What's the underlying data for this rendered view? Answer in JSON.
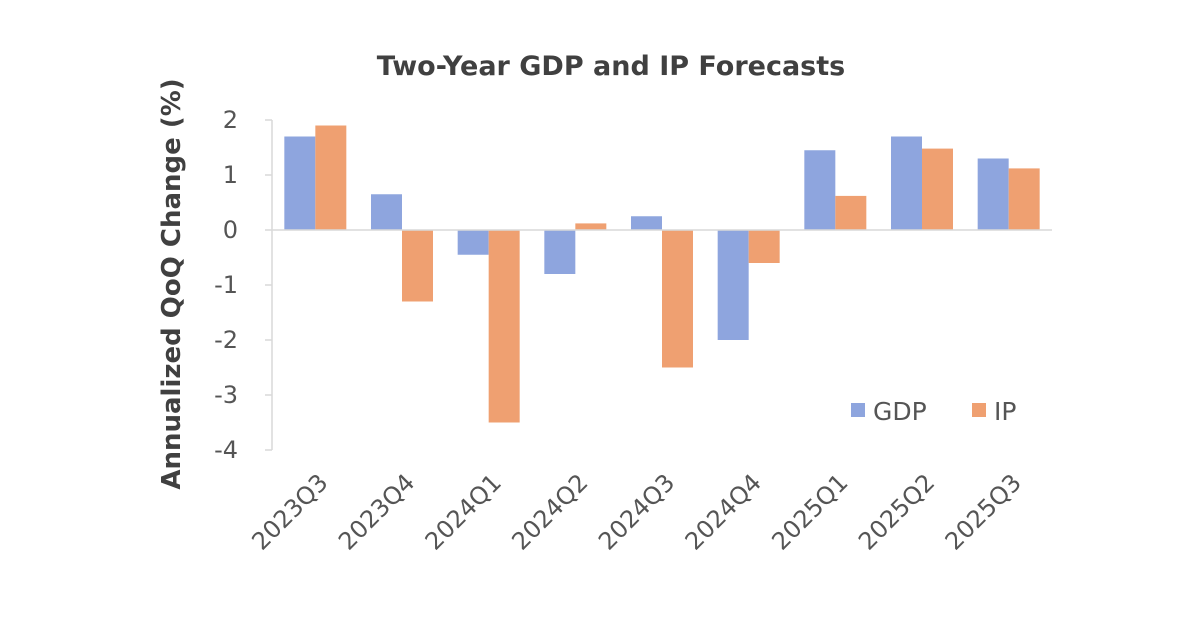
{
  "chart_data": {
    "type": "bar",
    "title": "Two-Year GDP and IP Forecasts",
    "xlabel": "",
    "ylabel": "Annualized QoQ Change (%)",
    "categories": [
      "2023Q3",
      "2023Q4",
      "2024Q1",
      "2024Q2",
      "2024Q3",
      "2024Q4",
      "2025Q1",
      "2025Q2",
      "2025Q3"
    ],
    "series": [
      {
        "name": "GDP",
        "color": "#8EA5DE",
        "values": [
          1.7,
          0.65,
          -0.45,
          -0.8,
          0.25,
          -2.0,
          1.45,
          1.7,
          1.3
        ]
      },
      {
        "name": "IP",
        "color": "#EFA071",
        "values": [
          1.9,
          -1.3,
          -3.5,
          0.12,
          -2.5,
          -0.6,
          0.62,
          1.48,
          1.12
        ]
      }
    ],
    "ylim": [
      -4,
      2
    ],
    "yticks": [
      2,
      1,
      0,
      -1,
      -2,
      -3,
      -4
    ],
    "ytick_labels": [
      "2",
      "1",
      "0",
      "-1",
      "-2",
      "-3",
      "-4"
    ],
    "grid": false,
    "legend_position": "bottom-right"
  }
}
